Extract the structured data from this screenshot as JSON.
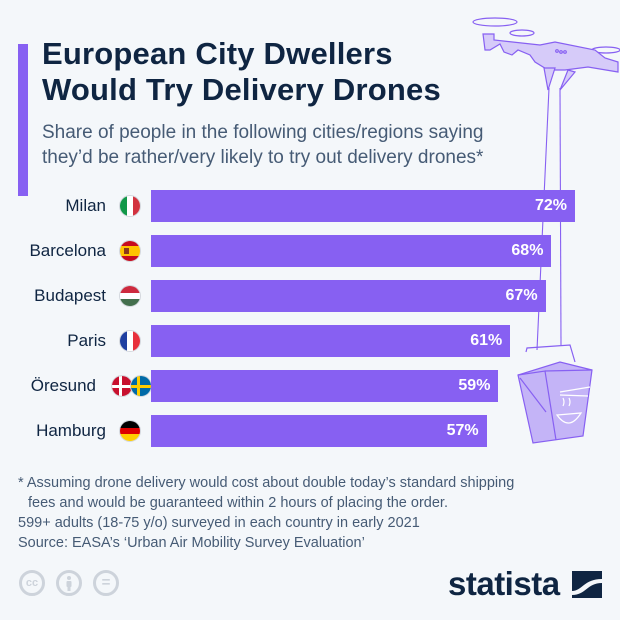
{
  "header": {
    "title_line1": "European City Dwellers",
    "title_line2": "Would Try Delivery Drones",
    "subtitle_line1": "Share of people in the following cities/regions saying",
    "subtitle_line2": "they’d be rather/very likely to try out delivery drones*"
  },
  "colors": {
    "bar": "#8760f2",
    "title": "#0f2542",
    "text": "#465b75",
    "background": "#f4f7fa"
  },
  "chart_data": {
    "type": "bar",
    "orientation": "horizontal",
    "title": "European City Dwellers Would Try Delivery Drones",
    "subtitle": "Share of people in the following cities/regions saying they’d be rather/very likely to try out delivery drones*",
    "categories": [
      "Milan",
      "Barcelona",
      "Budapest",
      "Paris",
      "Öresund",
      "Hamburg"
    ],
    "values": [
      72,
      68,
      67,
      61,
      59,
      57
    ],
    "value_labels": [
      "72%",
      "68%",
      "67%",
      "61%",
      "59%",
      "57%"
    ],
    "flags": [
      [
        "italy-flag"
      ],
      [
        "spain-flag"
      ],
      [
        "hungary-flag"
      ],
      [
        "france-flag"
      ],
      [
        "denmark-flag",
        "sweden-flag"
      ],
      [
        "germany-flag"
      ]
    ],
    "unit": "%",
    "xlim": [
      0,
      72
    ],
    "grid": false,
    "legend": "none"
  },
  "footer": {
    "note_line1": "* Assuming drone delivery would cost about double today’s standard shipping",
    "note_line2": "fees and would be guaranteed within 2 hours of placing the order.",
    "survey": "599+ adults (18-75 y/o) surveyed in each country in early 2021",
    "source": "Source: EASA’s ‘Urban Air Mobility Survey Evaluation’",
    "cc_icons": [
      "cc",
      "by",
      "nd"
    ],
    "cc_labels": [
      "cc",
      "",
      "="
    ],
    "brand": "statista"
  }
}
